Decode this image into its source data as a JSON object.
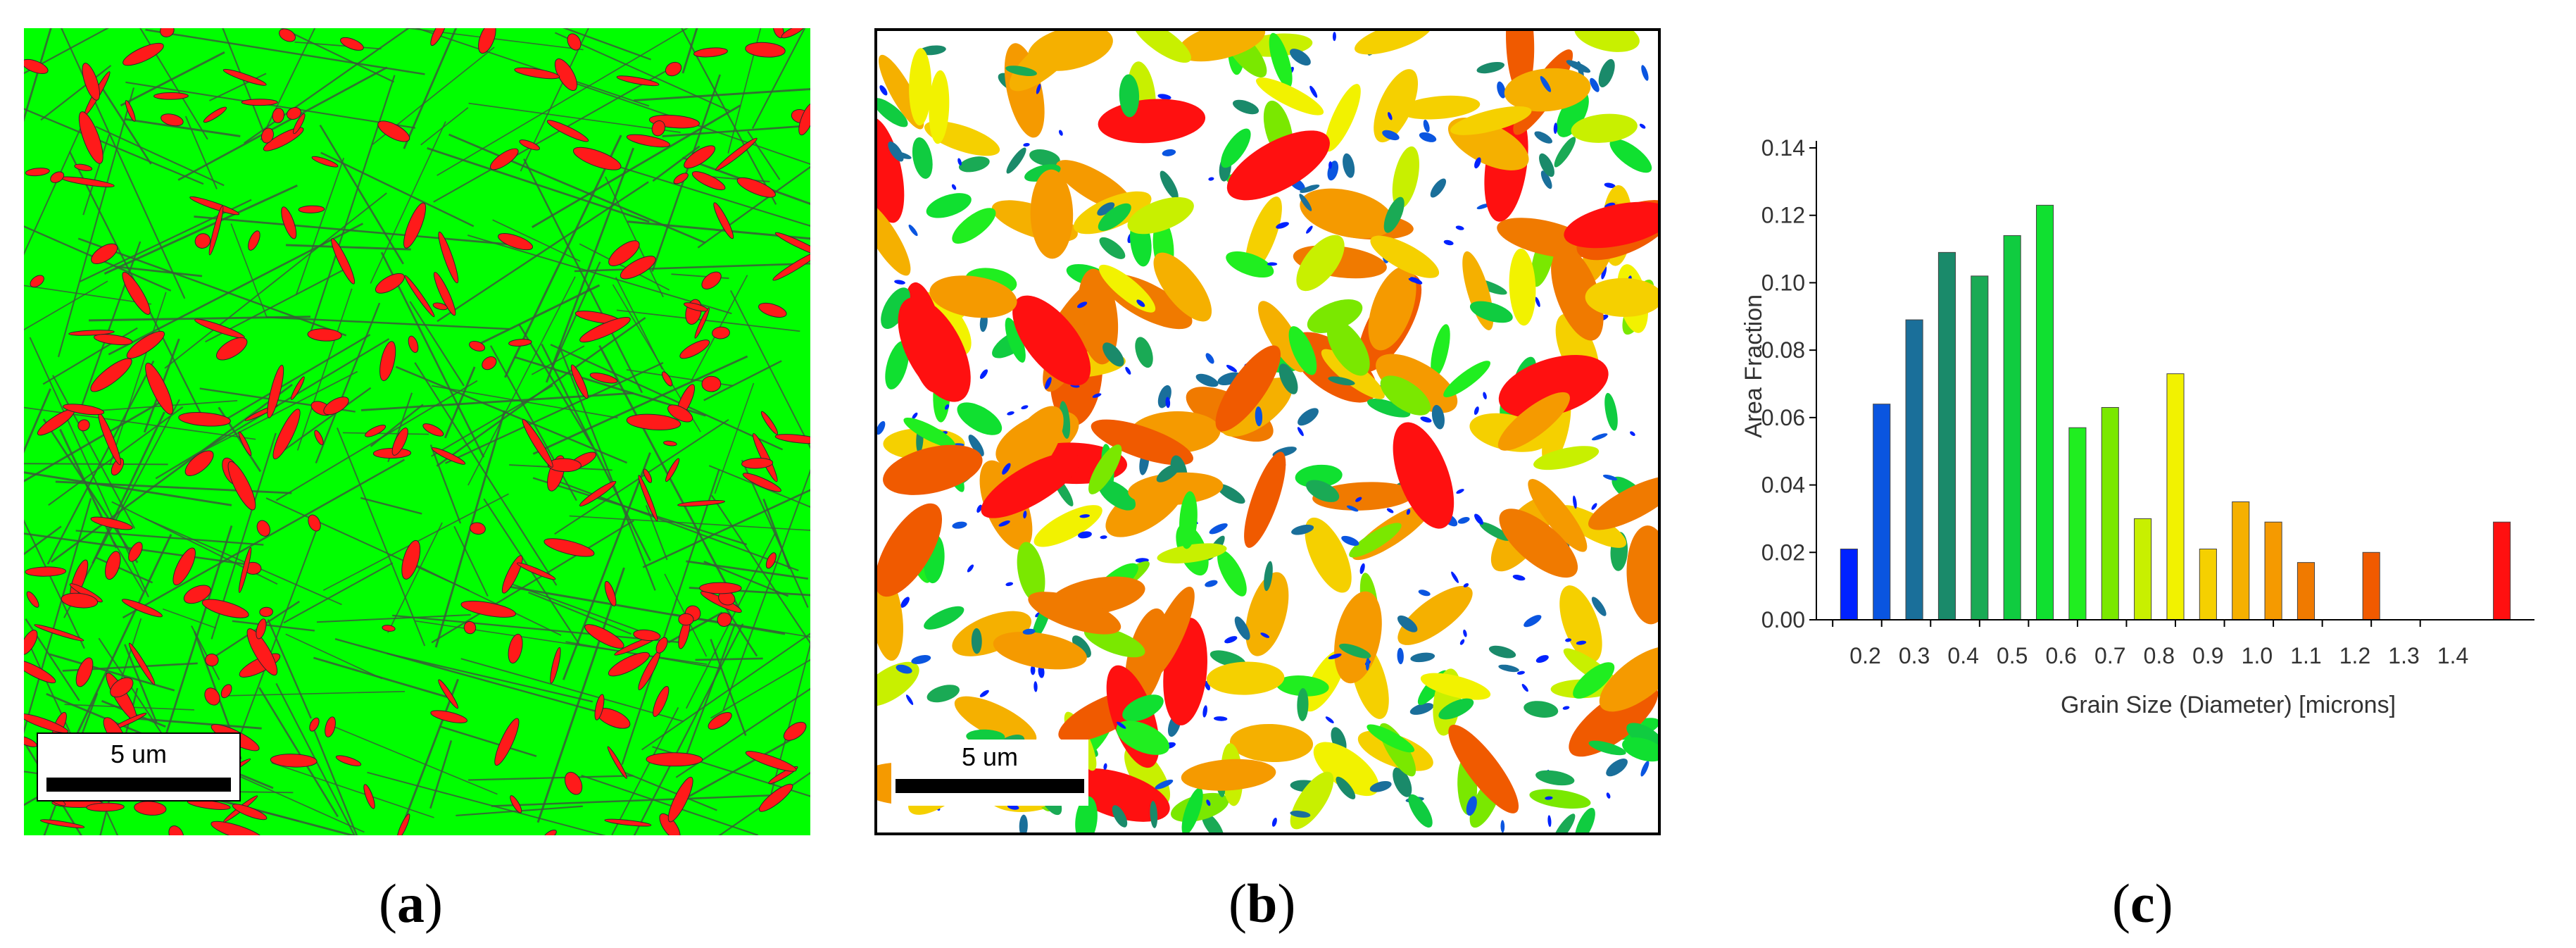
{
  "panels": {
    "a": {
      "caption": "(a)",
      "letter": "a",
      "scale_bar_label": "5 um",
      "phase_colors": {
        "matrix": "#00ff00",
        "second_phase": "#ff1a1a",
        "boundary": "#3a5a3a"
      }
    },
    "b": {
      "caption": "(b)",
      "letter": "b",
      "scale_bar_label": "5 um"
    },
    "c": {
      "caption": "(c)",
      "letter": "c"
    }
  },
  "chart_data": {
    "type": "bar",
    "xlabel": "Grain Size (Diameter) [microns]",
    "ylabel": "Area Fraction",
    "ylim": [
      0,
      0.14
    ],
    "yticks": [
      "0.00",
      "0.02",
      "0.04",
      "0.06",
      "0.08",
      "0.10",
      "0.12",
      "0.14"
    ],
    "xticks": [
      "0.2",
      "0.3",
      "0.4",
      "0.5",
      "0.6",
      "0.7",
      "0.8",
      "0.9",
      "1.0",
      "1.1",
      "1.2",
      "1.3",
      "1.4"
    ],
    "grid": false,
    "bars": [
      {
        "x": 0.15,
        "value": 0.021,
        "color": "#0022ff"
      },
      {
        "x": 0.2,
        "value": 0.064,
        "color": "#0a55e0"
      },
      {
        "x": 0.25,
        "value": 0.089,
        "color": "#1a6f9a"
      },
      {
        "x": 0.3,
        "value": 0.109,
        "color": "#1a8a6a"
      },
      {
        "x": 0.35,
        "value": 0.102,
        "color": "#1aaa55"
      },
      {
        "x": 0.4,
        "value": 0.114,
        "color": "#10cc40"
      },
      {
        "x": 0.45,
        "value": 0.123,
        "color": "#10e030"
      },
      {
        "x": 0.5,
        "value": 0.057,
        "color": "#20ee20"
      },
      {
        "x": 0.55,
        "value": 0.063,
        "color": "#7ae800"
      },
      {
        "x": 0.6,
        "value": 0.03,
        "color": "#c8f000"
      },
      {
        "x": 0.65,
        "value": 0.073,
        "color": "#f2f200"
      },
      {
        "x": 0.7,
        "value": 0.021,
        "color": "#f5d000"
      },
      {
        "x": 0.75,
        "value": 0.035,
        "color": "#f5b000"
      },
      {
        "x": 0.8,
        "value": 0.029,
        "color": "#f59a00"
      },
      {
        "x": 0.85,
        "value": 0.017,
        "color": "#f07a00"
      },
      {
        "x": 0.95,
        "value": 0.02,
        "color": "#f05a00"
      },
      {
        "x": 1.15,
        "value": 0.029,
        "color": "#ff1010"
      }
    ]
  }
}
